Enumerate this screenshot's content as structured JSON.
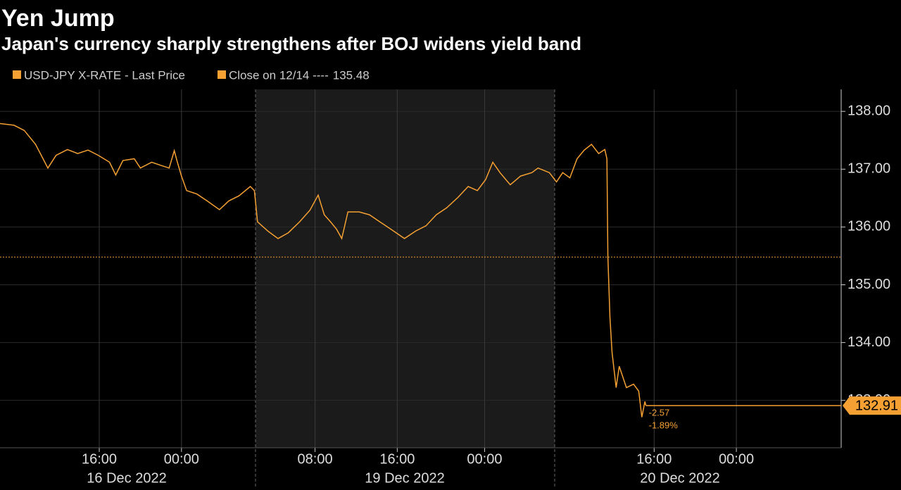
{
  "chart_data": {
    "type": "line",
    "title": "Yen Jump",
    "subtitle": "Japan's currency sharply strengthens after BOJ widens yield band",
    "x": [
      6.3,
      7.7,
      8.7,
      9.8,
      11.0,
      11.8,
      12.9,
      13.9,
      14.9,
      15.9,
      17.0,
      17.6,
      18.3,
      19.4,
      20.0,
      21.1,
      22.1,
      22.8,
      23.3,
      23.6,
      24.0,
      24.5,
      25.5,
      26.5,
      27.7,
      28.6,
      29.6,
      30.7,
      31.1,
      31.4,
      32.4,
      33.4,
      34.4,
      35.5,
      36.5,
      37.3,
      37.9,
      38.5,
      39.1,
      39.6,
      40.2,
      41.3,
      42.3,
      43.3,
      44.4,
      45.7,
      46.8,
      47.8,
      48.8,
      49.8,
      50.9,
      51.9,
      52.8,
      53.6,
      54.3,
      55.0,
      56.0,
      57.0,
      58.1,
      58.7,
      59.8,
      60.5,
      61.1,
      61.8,
      62.5,
      63.2,
      63.9,
      64.6,
      65.2,
      65.4,
      65.5,
      65.7,
      65.9,
      66.3,
      66.6,
      67.3,
      68.0,
      68.5,
      68.8,
      69.1,
      69.2
    ],
    "series": [
      {
        "name": "USD-JPY X-RATE - Last Price",
        "color": "#f5a033",
        "values": [
          137.79,
          137.76,
          137.67,
          137.43,
          137.02,
          137.24,
          137.34,
          137.27,
          137.33,
          137.24,
          137.12,
          136.9,
          137.15,
          137.18,
          137.02,
          137.12,
          137.06,
          137.02,
          137.32,
          137.12,
          136.88,
          136.63,
          136.57,
          136.45,
          136.3,
          136.45,
          136.54,
          136.7,
          136.63,
          136.09,
          135.93,
          135.8,
          135.9,
          136.09,
          136.29,
          136.55,
          136.21,
          136.09,
          135.96,
          135.8,
          136.26,
          136.26,
          136.21,
          136.09,
          135.96,
          135.8,
          135.93,
          136.02,
          136.21,
          136.33,
          136.51,
          136.7,
          136.63,
          136.82,
          137.12,
          136.94,
          136.73,
          136.88,
          136.94,
          137.02,
          136.94,
          136.78,
          136.94,
          136.85,
          137.18,
          137.33,
          137.43,
          137.27,
          137.34,
          137.18,
          135.48,
          134.44,
          133.83,
          133.22,
          133.59,
          133.22,
          133.28,
          133.16,
          132.71,
          132.98,
          132.91
        ]
      }
    ],
    "reference_line": {
      "label": "Close on 12/14 ----",
      "value": 135.48,
      "color": "#f5a033"
    },
    "change_labels": [
      "-2.57",
      "-1.89%"
    ],
    "xlim": [
      6.34,
      88.2
    ],
    "xticks": [
      {
        "value": 16,
        "label": "16:00"
      },
      {
        "value": 24,
        "label": "00:00"
      },
      {
        "value": 37,
        "label": "08:00"
      },
      {
        "value": 45,
        "label": "16:00"
      },
      {
        "value": 53.5,
        "label": "00:00"
      },
      {
        "value": 70,
        "label": "16:00"
      },
      {
        "value": 78,
        "label": "00:00"
      }
    ],
    "day_labels": [
      "16 Dec 2022",
      "19 Dec 2022",
      "20 Dec 2022"
    ],
    "ylim": [
      132.18,
      138.38
    ],
    "yticks": [
      {
        "value": 133,
        "label": "133.00"
      },
      {
        "value": 134,
        "label": "134.00"
      },
      {
        "value": 135,
        "label": "135.00"
      },
      {
        "value": 136,
        "label": "136.00"
      },
      {
        "value": 137,
        "label": "137.00"
      },
      {
        "value": 138,
        "label": "138.00"
      }
    ],
    "grid": true
  }
}
